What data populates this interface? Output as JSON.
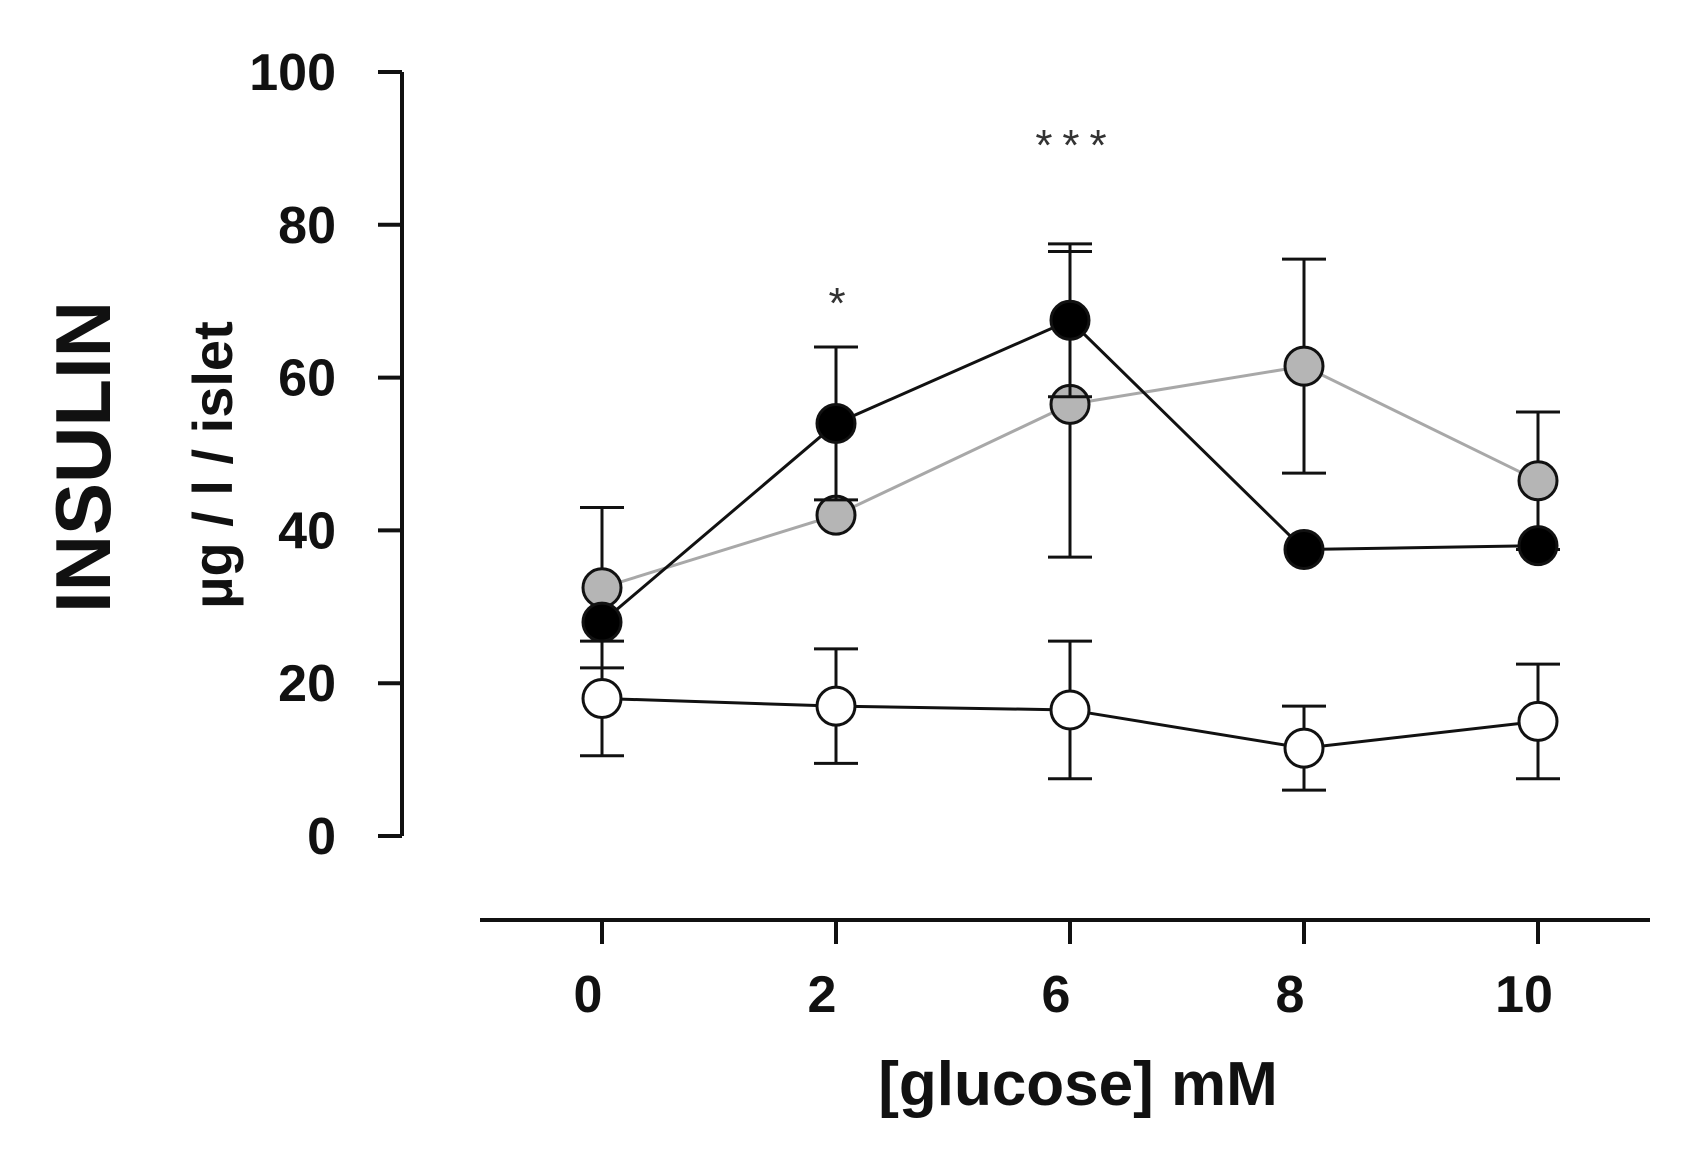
{
  "chart_data": {
    "type": "line",
    "ylabel": "INSULIN",
    "ylabel_units": "µg / l / islet",
    "xlabel": "[glucose] mM",
    "categories": [
      "0",
      "2",
      "6",
      "8",
      "10"
    ],
    "ylim": [
      0,
      100
    ],
    "yticks": [
      "0",
      "20",
      "40",
      "60",
      "80",
      "100"
    ],
    "grid": false,
    "series": [
      {
        "marker": "filled-circle",
        "color": "#000000",
        "values": [
          28,
          54,
          67.5,
          37.5,
          38
        ],
        "error": [
          null,
          10,
          10,
          null,
          null
        ]
      },
      {
        "marker": "gray-circle",
        "color": "#b5b5b5",
        "values": [
          32.5,
          42,
          56.5,
          61.5,
          46.5
        ],
        "error": [
          10.5,
          null,
          20,
          14,
          9
        ]
      },
      {
        "marker": "open-circle",
        "color": "#ffffff",
        "values": [
          18,
          17,
          16.5,
          11.5,
          15
        ],
        "error": [
          7.5,
          7.5,
          9,
          5.5,
          7.5
        ]
      }
    ],
    "annotations": [
      {
        "category": "2",
        "text": "*"
      },
      {
        "category": "6",
        "text": "***"
      }
    ]
  }
}
